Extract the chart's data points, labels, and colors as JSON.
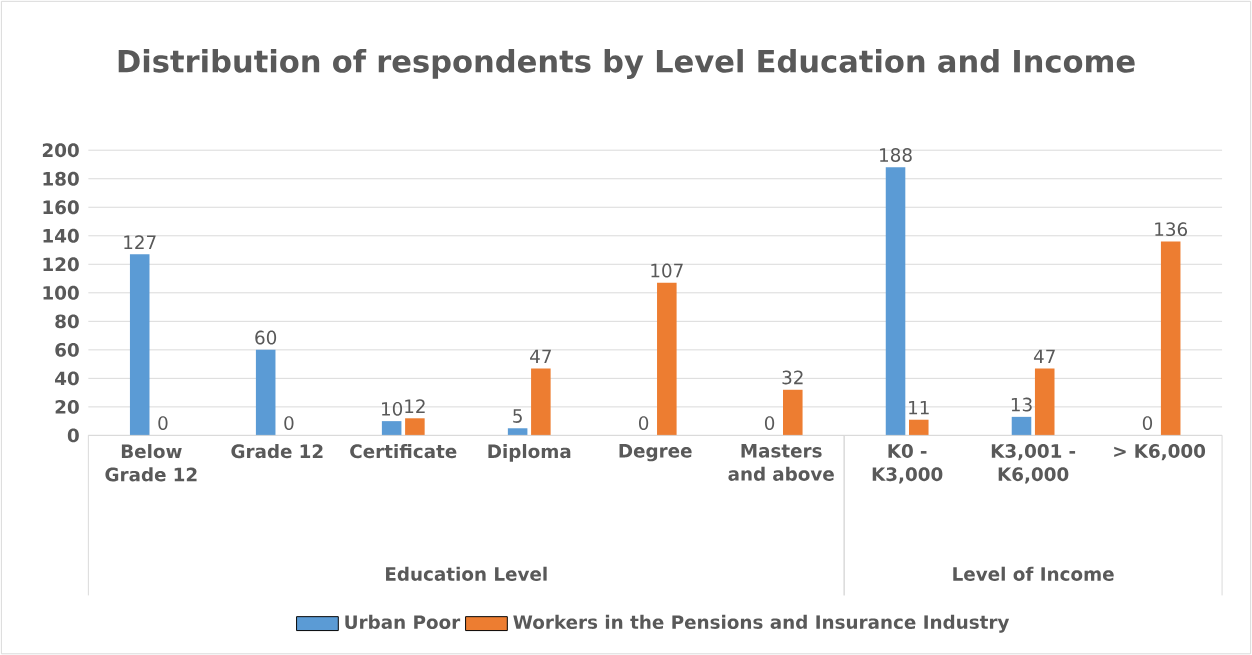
{
  "chart_data": {
    "type": "bar",
    "title": "Distribution of respondents by Level Education and Income",
    "categories": [
      "Below Grade 12",
      "Grade 12",
      "Certificate",
      "Diploma",
      "Degree",
      "Masters and above",
      "K0 - K3,000",
      "K3,001 - K6,000",
      "> K6,000"
    ],
    "series": [
      {
        "name": "Urban Poor",
        "color": "#5b9bd5",
        "values": [
          127,
          60,
          10,
          5,
          0,
          0,
          188,
          13,
          0
        ]
      },
      {
        "name": "Workers in the Pensions and Insurance Industry",
        "color": "#ed7d31",
        "values": [
          0,
          0,
          12,
          47,
          107,
          32,
          11,
          47,
          136
        ]
      }
    ],
    "annotations": [
      "Education Level",
      "Level of Income"
    ],
    "ylim": [
      0,
      200
    ],
    "yticks": [
      0,
      20,
      40,
      60,
      80,
      100,
      120,
      140,
      160,
      180,
      200
    ],
    "grid": "y",
    "legend": "bottom",
    "data_labels": true
  }
}
